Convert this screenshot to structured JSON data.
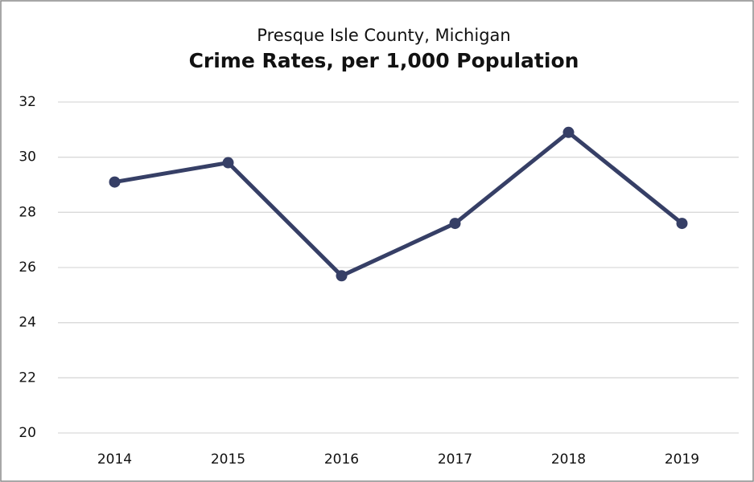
{
  "chart_data": {
    "type": "line",
    "subtitle": "Presque Isle County, Michigan",
    "title": "Crime Rates, per 1,000 Population",
    "categories": [
      "2014",
      "2015",
      "2016",
      "2017",
      "2018",
      "2019"
    ],
    "series": [
      {
        "name": "Crime Rate",
        "color": "#363f66",
        "values": [
          29.1,
          29.8,
          25.7,
          27.6,
          30.9,
          27.6
        ]
      }
    ],
    "ylim": [
      20,
      32
    ],
    "yticks": [
      20,
      22,
      24,
      26,
      28,
      30,
      32
    ],
    "grid": true,
    "legend": false
  }
}
